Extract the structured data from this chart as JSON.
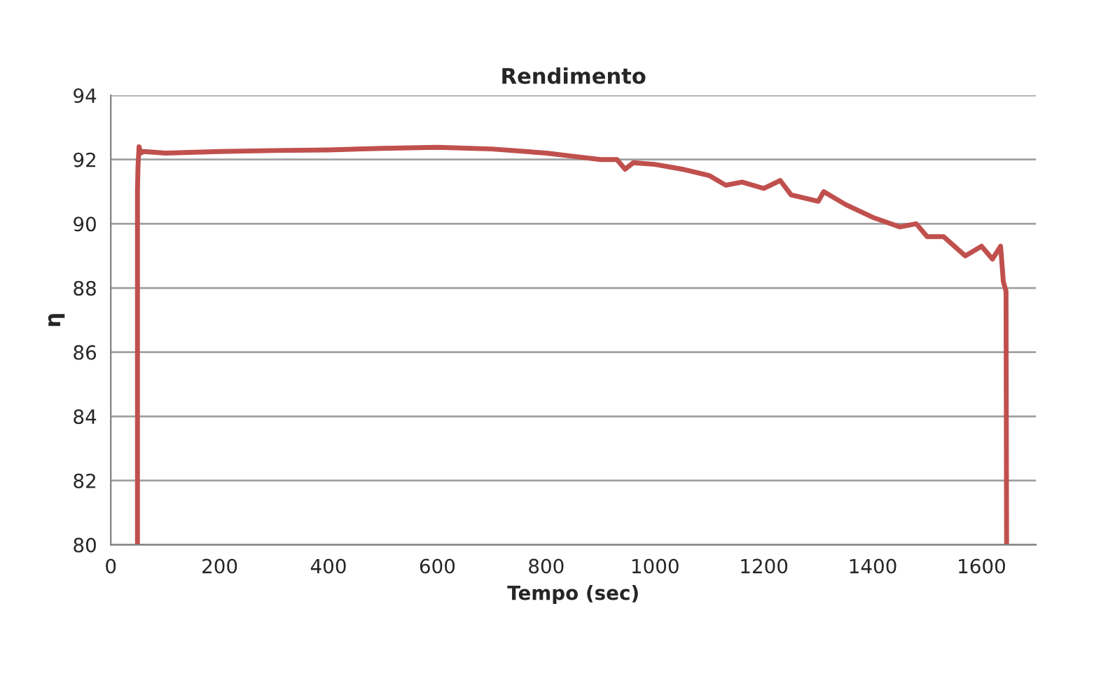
{
  "chart_data": {
    "type": "line",
    "title": "Rendimento",
    "xlabel": "Tempo (sec)",
    "ylabel": "η",
    "xlim": [
      0,
      1700
    ],
    "xticks": [
      0,
      200,
      400,
      600,
      800,
      1000,
      1200,
      1400,
      1600
    ],
    "ylim": [
      80,
      94
    ],
    "yticks": [
      80,
      82,
      84,
      86,
      88,
      90,
      92,
      94
    ],
    "grid": "y",
    "marker": "none",
    "line_style": "solid",
    "series": [
      {
        "color": "#c0504d",
        "x": [
          49,
          49,
          50,
          52,
          55,
          60,
          100,
          200,
          300,
          400,
          500,
          600,
          700,
          800,
          850,
          900,
          930,
          945,
          960,
          1000,
          1050,
          1100,
          1130,
          1160,
          1200,
          1230,
          1250,
          1300,
          1310,
          1350,
          1400,
          1450,
          1480,
          1500,
          1530,
          1550,
          1570,
          1600,
          1620,
          1635,
          1640,
          1645,
          1646
        ],
        "values": [
          80,
          91,
          91.8,
          92.4,
          92.2,
          92.25,
          92.2,
          92.25,
          92.28,
          92.3,
          92.35,
          92.38,
          92.33,
          92.2,
          92.1,
          92.0,
          92.0,
          91.7,
          91.9,
          91.85,
          91.7,
          91.5,
          91.2,
          91.3,
          91.1,
          91.35,
          90.9,
          90.7,
          91.0,
          90.6,
          90.2,
          89.9,
          90.0,
          89.6,
          89.6,
          89.3,
          89.0,
          89.3,
          88.9,
          89.3,
          88.2,
          87.9,
          80
        ]
      }
    ]
  }
}
